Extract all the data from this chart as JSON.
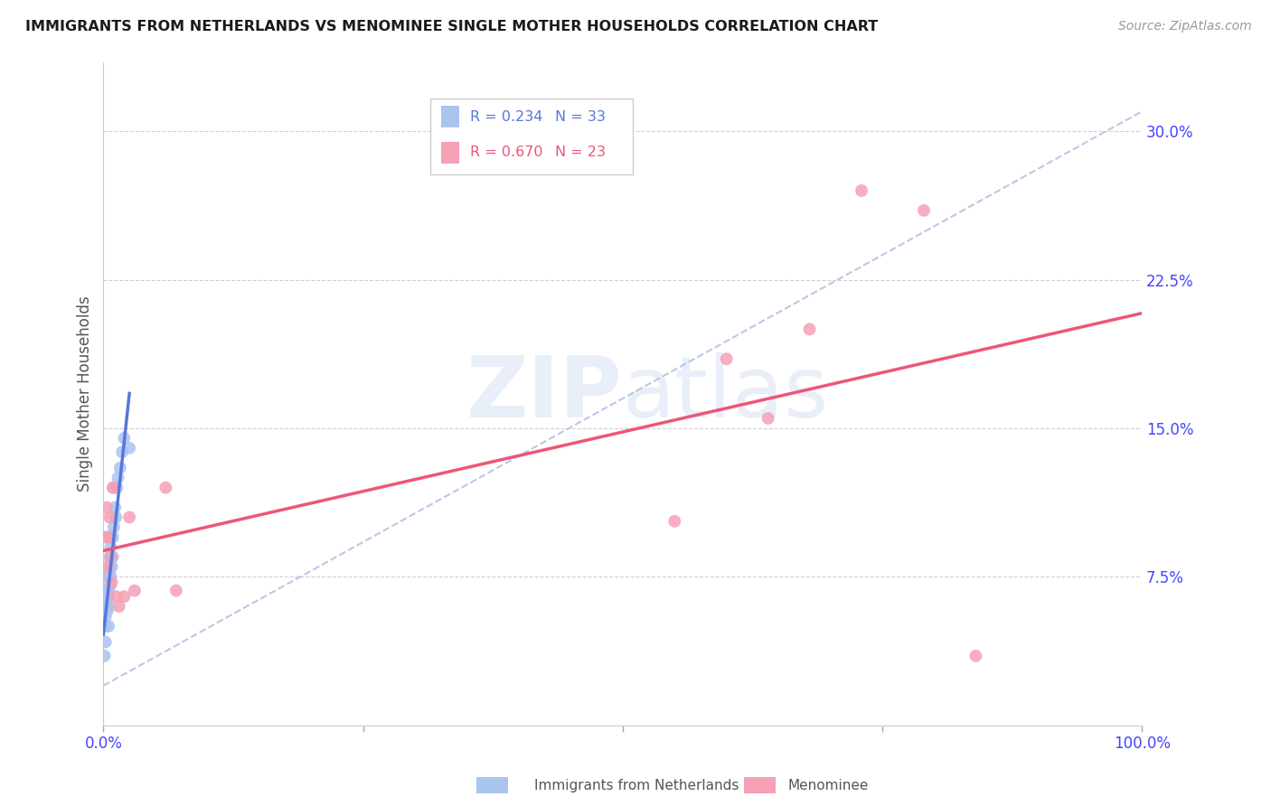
{
  "title": "IMMIGRANTS FROM NETHERLANDS VS MENOMINEE SINGLE MOTHER HOUSEHOLDS CORRELATION CHART",
  "source": "Source: ZipAtlas.com",
  "tick_color": "#4444ff",
  "ylabel": "Single Mother Households",
  "y_tick_labels": [
    "7.5%",
    "15.0%",
    "22.5%",
    "30.0%"
  ],
  "y_tick_values": [
    0.075,
    0.15,
    0.225,
    0.3
  ],
  "x_tick_positions": [
    0.0,
    0.25,
    0.5,
    0.75,
    1.0
  ],
  "x_tick_labels": [
    "0.0%",
    "",
    "",
    "",
    "100.0%"
  ],
  "xlim": [
    0.0,
    1.0
  ],
  "ylim": [
    0.0,
    0.335
  ],
  "legend_r1": "R = 0.234",
  "legend_n1": "N = 33",
  "legend_r2": "R = 0.670",
  "legend_n2": "N = 23",
  "legend_label1": "Immigrants from Netherlands",
  "legend_label2": "Menominee",
  "blue_color": "#aac4f0",
  "pink_color": "#f5a0b5",
  "blue_line_color": "#5577dd",
  "pink_line_color": "#ee5577",
  "dashed_line_color": "#aabbdd",
  "watermark_zip": "ZIP",
  "watermark_atlas": "atlas",
  "blue_scatter_x": [
    0.001,
    0.002,
    0.002,
    0.002,
    0.003,
    0.003,
    0.003,
    0.004,
    0.004,
    0.004,
    0.005,
    0.005,
    0.005,
    0.005,
    0.006,
    0.006,
    0.006,
    0.007,
    0.007,
    0.007,
    0.008,
    0.008,
    0.009,
    0.009,
    0.01,
    0.011,
    0.012,
    0.013,
    0.014,
    0.016,
    0.018,
    0.02,
    0.025
  ],
  "blue_scatter_y": [
    0.035,
    0.042,
    0.05,
    0.055,
    0.06,
    0.065,
    0.075,
    0.058,
    0.068,
    0.075,
    0.05,
    0.06,
    0.065,
    0.075,
    0.07,
    0.078,
    0.085,
    0.075,
    0.08,
    0.09,
    0.08,
    0.095,
    0.085,
    0.095,
    0.1,
    0.11,
    0.105,
    0.12,
    0.125,
    0.13,
    0.138,
    0.145,
    0.14
  ],
  "pink_scatter_x": [
    0.002,
    0.003,
    0.004,
    0.005,
    0.006,
    0.007,
    0.008,
    0.009,
    0.01,
    0.012,
    0.015,
    0.02,
    0.025,
    0.03,
    0.06,
    0.07,
    0.55,
    0.6,
    0.64,
    0.68,
    0.73,
    0.79,
    0.84
  ],
  "pink_scatter_y": [
    0.095,
    0.11,
    0.08,
    0.095,
    0.105,
    0.085,
    0.072,
    0.12,
    0.12,
    0.065,
    0.06,
    0.065,
    0.105,
    0.068,
    0.12,
    0.068,
    0.103,
    0.185,
    0.155,
    0.2,
    0.27,
    0.26,
    0.035
  ]
}
